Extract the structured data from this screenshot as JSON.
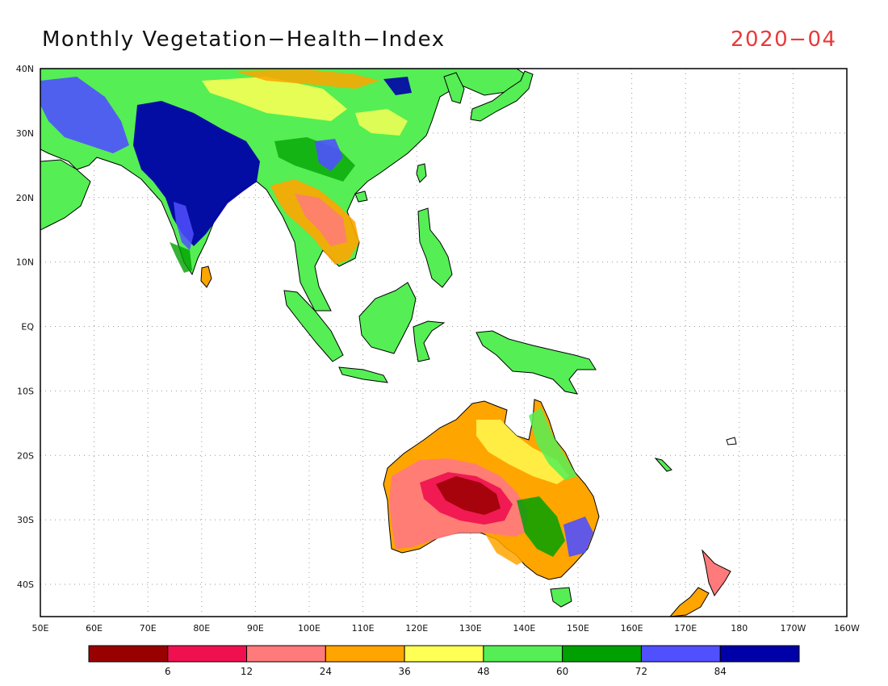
{
  "title": "Monthly Vegetation−Health−Index",
  "date": "2020−04",
  "date_color": "#e83a3a",
  "lat_labels": [
    "40N",
    "30N",
    "20N",
    "10N",
    "EQ",
    "10S",
    "20S",
    "30S",
    "40S"
  ],
  "lon_labels": [
    "50E",
    "60E",
    "70E",
    "80E",
    "90E",
    "100E",
    "110E",
    "120E",
    "130E",
    "140E",
    "150E",
    "160E",
    "170E",
    "180",
    "170W",
    "160W"
  ],
  "colorbar": {
    "colors": [
      "#990000",
      "#f01050",
      "#ff7a7a",
      "#ffa500",
      "#ffff55",
      "#55ee55",
      "#00a000",
      "#5050ff",
      "#0000a8"
    ],
    "tick_labels": [
      "6",
      "12",
      "24",
      "36",
      "48",
      "60",
      "72",
      "84"
    ]
  }
}
